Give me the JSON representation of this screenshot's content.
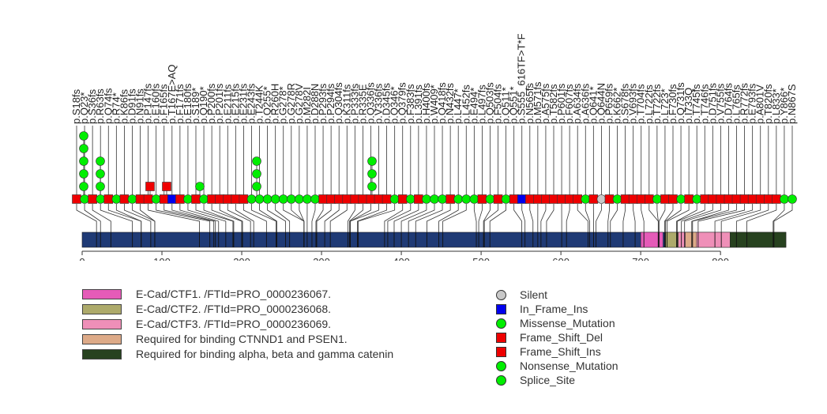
{
  "axis": {
    "ticks": [
      "0",
      "100",
      "200",
      "300",
      "400",
      "500",
      "600",
      "700",
      "800"
    ],
    "tick_values": [
      0,
      100,
      200,
      300,
      400,
      500,
      600,
      700,
      800
    ],
    "max": 882
  },
  "protein_domains": [
    {
      "label": "E-Cad/CTF1. /FTId=PRO_0000236067.",
      "color": "#e55bb8",
      "start": 700,
      "end": 728
    },
    {
      "label": "E-Cad/CTF2. /FTId=PRO_0000236068.",
      "color": "#adaa6b",
      "start": 731,
      "end": 747
    },
    {
      "label": "E-Cad/CTF3. /FTId=PRO_0000236069.",
      "color": "#ef8fb8",
      "start": 747,
      "end": 812
    },
    {
      "label": "Required for binding CTNND1 and PSEN1.",
      "color": "#ddaa88",
      "start": 756,
      "end": 770
    },
    {
      "label": "Required for binding alpha, beta and gamma catenin",
      "color": "#27421f",
      "start": 812,
      "end": 882
    }
  ],
  "backbone_color": "#1f3a75",
  "mutation_legend": [
    {
      "label": "Silent",
      "shape": "circle",
      "color": "#c8c8c8"
    },
    {
      "label": "In_Frame_Ins",
      "shape": "square",
      "color": "#0000ee"
    },
    {
      "label": "Missense_Mutation",
      "shape": "circle",
      "color": "#00ee00"
    },
    {
      "label": "Frame_Shift_Del",
      "shape": "square",
      "color": "#ee0000"
    },
    {
      "label": "Frame_Shift_Ins",
      "shape": "square",
      "color": "#ee0000"
    },
    {
      "label": "Nonsense_Mutation",
      "shape": "circle",
      "color": "#00ee00"
    },
    {
      "label": "Splice_Site",
      "shape": "circle",
      "color": "#00ee00"
    }
  ],
  "mutation_labels": [
    "p.S18fs",
    "p.Q23*",
    "p.S36fs",
    "p.R63fs",
    "p.Q74fs",
    "p.R74*",
    "p.K86fs",
    "p.D91fs",
    "p.N91fs",
    "p.P147fs",
    "p.E160fs",
    "p.F165fs",
    "p.T167E>AQ",
    "p.F171fs",
    "p.E180fs",
    "p.S189*",
    "p.Q190*",
    "p.P200fs",
    "p.P201fs",
    "p.E211fs",
    "p.E215fs",
    "p.E231fs",
    "p.E243fs",
    "p.T244K",
    "p.Q255*",
    "p.R260H",
    "p.G278*",
    "p.G278R",
    "p.G278V",
    "p.M282I",
    "p.D288N",
    "p.P293fs",
    "p.P294fs",
    "p.Q304fs",
    "p.K311fs",
    "p.P333fs",
    "p.R335E",
    "p.Q336fs",
    "p.V336fs",
    "p.D345fs",
    "p.Q346*",
    "p.Q379fs",
    "p.F383fs",
    "p.L391fs",
    "p.H400fs",
    "p.W409*",
    "p.Q418fs",
    "p.N432fs",
    "p.L447*",
    "p.L452fs",
    "p.E494*",
    "p.L497fs",
    "p.Q503fs",
    "p.F504fs",
    "p.Q511*",
    "p.Q551*",
    "p.S555_616TF>T*F",
    "p.N565fs",
    "p.M571fs",
    "p.A575fs",
    "p.T582fs",
    "p.P601fs",
    "p.F607fs",
    "p.A634fs",
    "p.A636fs",
    "p.Q641*",
    "p.Q644N",
    "p.P659fs",
    "p.K662*",
    "p.S678fs",
    "p.V693fs",
    "p.T704fs",
    "p.L722fs",
    "p.T722fs",
    "p.L723*",
    "p.F730fs",
    "p.Q731fs",
    "p.I733Q",
    "p.T745fs",
    "p.T746fs",
    "p.D751fs",
    "p.V755fs",
    "p.D764fs",
    "p.L765fs",
    "p.R772fs",
    "p.E793fs",
    "p.A801V",
    "p.T820fs",
    "p.L833*",
    "p.Y866*",
    "p.N867S"
  ]
}
